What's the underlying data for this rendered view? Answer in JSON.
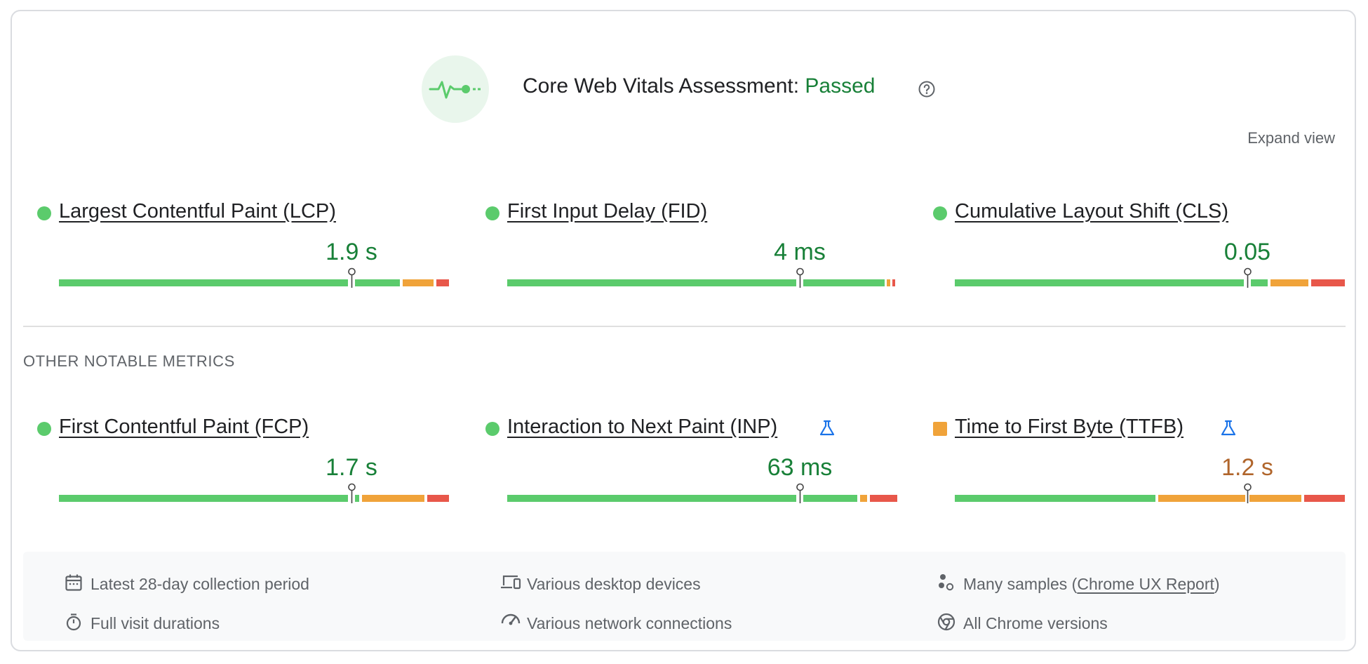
{
  "assessment": {
    "prefix": "Core Web Vitals Assessment: ",
    "status": "Passed",
    "icon": "vitals-pulse-icon",
    "help_icon": "help-circle-icon",
    "status_color": "#188038"
  },
  "expand_label": "Expand view",
  "core_metrics": [
    {
      "name": "Largest Contentful Paint (LCP)",
      "value": "1.9 s",
      "rating": "good"
    },
    {
      "name": "First Input Delay (FID)",
      "value": "4 ms",
      "rating": "good"
    },
    {
      "name": "Cumulative Layout Shift (CLS)",
      "value": "0.05",
      "rating": "good"
    }
  ],
  "other_section_label": "OTHER NOTABLE METRICS",
  "other_metrics": [
    {
      "name": "First Contentful Paint (FCP)",
      "value": "1.7 s",
      "rating": "good",
      "experimental": false
    },
    {
      "name": "Interaction to Next Paint (INP)",
      "value": "63 ms",
      "rating": "good",
      "experimental": true
    },
    {
      "name": "Time to First Byte (TTFB)",
      "value": "1.2 s",
      "rating": "needs-improvement",
      "experimental": true
    }
  ],
  "footer": {
    "period": "Latest 28-day collection period",
    "devices": "Various desktop devices",
    "samples_prefix": "Many samples (",
    "samples_link": "Chrome UX Report",
    "samples_suffix": ")",
    "durations": "Full visit durations",
    "network": "Various network connections",
    "chrome": "All Chrome versions"
  },
  "colors": {
    "good": "#5bcb6c",
    "needs_improvement": "#f0a33a",
    "poor": "#e8574a",
    "good_text": "#188038",
    "warn_text": "#b0652b"
  }
}
